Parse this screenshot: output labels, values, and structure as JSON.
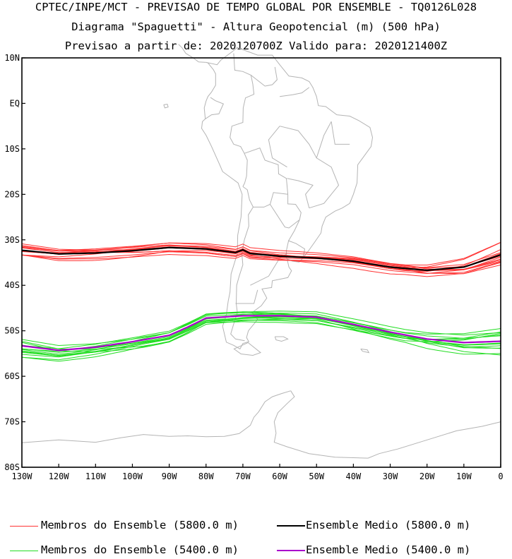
{
  "titles": {
    "line1": "CPTEC/INPE/MCT - PREVISAO DE TEMPO GLOBAL POR ENSEMBLE - TQ0126L028",
    "line2": "Diagrama \"Spaguetti\" - Altura Geopotencial (m) (500 hPa)",
    "line3": "Previsao a partir de: 2020120700Z  Valido para: 2020121400Z"
  },
  "chart_data": {
    "type": "line",
    "projection": "lon-lat",
    "xlim": [
      -130,
      0
    ],
    "ylim": [
      -80,
      10
    ],
    "x_ticks": [
      {
        "v": -130,
        "label": "130W"
      },
      {
        "v": -120,
        "label": "120W"
      },
      {
        "v": -110,
        "label": "110W"
      },
      {
        "v": -100,
        "label": "100W"
      },
      {
        "v": -90,
        "label": "90W"
      },
      {
        "v": -80,
        "label": "80W"
      },
      {
        "v": -70,
        "label": "70W"
      },
      {
        "v": -60,
        "label": "60W"
      },
      {
        "v": -50,
        "label": "50W"
      },
      {
        "v": -40,
        "label": "40W"
      },
      {
        "v": -30,
        "label": "30W"
      },
      {
        "v": -20,
        "label": "20W"
      },
      {
        "v": -10,
        "label": "10W"
      },
      {
        "v": 0,
        "label": "0"
      }
    ],
    "y_ticks": [
      {
        "v": 10,
        "label": "10N"
      },
      {
        "v": 0,
        "label": "EQ"
      },
      {
        "v": -10,
        "label": "10S"
      },
      {
        "v": -20,
        "label": "20S"
      },
      {
        "v": -30,
        "label": "30S"
      },
      {
        "v": -40,
        "label": "40S"
      },
      {
        "v": -50,
        "label": "50S"
      },
      {
        "v": -60,
        "label": "60S"
      },
      {
        "v": -70,
        "label": "70S"
      },
      {
        "v": -80,
        "label": "80S"
      }
    ],
    "series": [
      {
        "name": "Membros do Ensemble (5800.0 m)",
        "color": "#ff3333",
        "kind": "members",
        "center": "mean5800"
      },
      {
        "name": "Ensemble Medio (5800.0 m)",
        "color": "#000000",
        "kind": "mean",
        "id": "mean5800",
        "x": [
          -130,
          -120,
          -110,
          -100,
          -90,
          -80,
          -72,
          -70,
          -68,
          -60,
          -50,
          -40,
          -30,
          -20,
          -10,
          0
        ],
        "y": [
          -32.3,
          -33.1,
          -32.9,
          -32.4,
          -31.7,
          -32.0,
          -32.8,
          -32.2,
          -33.0,
          -33.6,
          -34.0,
          -34.7,
          -36.0,
          -36.7,
          -36.0,
          -33.3
        ]
      },
      {
        "name": "Membros do Ensemble (5400.0 m)",
        "color": "#22dd22",
        "kind": "members",
        "center": "mean5400"
      },
      {
        "name": "Ensemble Medio (5400.0 m)",
        "color": "#aa00cc",
        "kind": "mean",
        "id": "mean5400",
        "x": [
          -130,
          -120,
          -110,
          -100,
          -90,
          -85,
          -80,
          -70,
          -60,
          -50,
          -40,
          -30,
          -20,
          -10,
          0
        ],
        "y": [
          -53.3,
          -54.3,
          -53.6,
          -52.4,
          -51.0,
          -49.2,
          -47.2,
          -46.7,
          -46.7,
          -47.0,
          -48.6,
          -50.3,
          -51.8,
          -52.6,
          -52.3
        ]
      }
    ]
  },
  "legend": [
    {
      "label": "Membros do Ensemble (5800.0 m)",
      "color": "#ff3333",
      "thin": true
    },
    {
      "label": "Ensemble Medio (5800.0 m)",
      "color": "#000000",
      "thin": false
    },
    {
      "label": "Membros do Ensemble (5400.0 m)",
      "color": "#22dd22",
      "thin": true
    },
    {
      "label": "Ensemble Medio (5400.0 m)",
      "color": "#aa00cc",
      "thin": false
    }
  ]
}
